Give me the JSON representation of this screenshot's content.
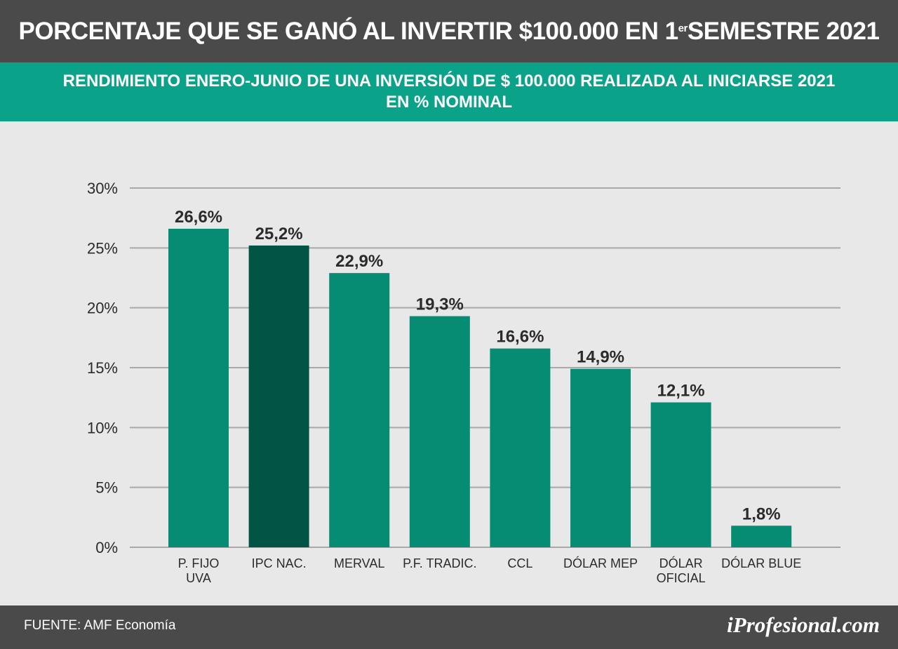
{
  "header": {
    "title_main": "PORCENTAJE QUE SE GANÓ AL INVERTIR $100.000 EN 1",
    "title_sup": "er",
    "title_end": " SEMESTRE 2021"
  },
  "subheader": {
    "line1": "RENDIMIENTO ENERO-JUNIO DE UNA INVERSIÓN DE $ 100.000 REALIZADA AL INICIARSE 2021",
    "line2": "EN % NOMINAL"
  },
  "footer": {
    "source": "FUENTE: AMF Economía",
    "brand": "iProfesional.com"
  },
  "colors": {
    "bar": "#078c74",
    "bar_highlight": "#025444",
    "grid": "#a9a9a9",
    "label": "#2b2b2b"
  },
  "chart_data": {
    "type": "bar",
    "categories": [
      [
        "P. FIJO",
        "UVA"
      ],
      [
        "IPC NAC."
      ],
      [
        "MERVAL"
      ],
      [
        "P.F. TRADIC."
      ],
      [
        "CCL"
      ],
      [
        "DÓLAR MEP"
      ],
      [
        "DÓLAR",
        "OFICIAL"
      ],
      [
        "DÓLAR BLUE"
      ]
    ],
    "values": [
      26.6,
      25.2,
      22.9,
      19.3,
      16.6,
      14.9,
      12.1,
      1.8
    ],
    "value_labels": [
      "26,6%",
      "25,2%",
      "22,9%",
      "19,3%",
      "16,6%",
      "14,9%",
      "12,1%",
      "1,8%"
    ],
    "highlight_index": 1,
    "ylim": [
      0,
      30
    ],
    "yticks": [
      0,
      5,
      10,
      15,
      20,
      25,
      30
    ],
    "ytick_labels": [
      "0%",
      "5%",
      "10%",
      "15%",
      "20%",
      "25%",
      "30%"
    ],
    "grid": true
  }
}
